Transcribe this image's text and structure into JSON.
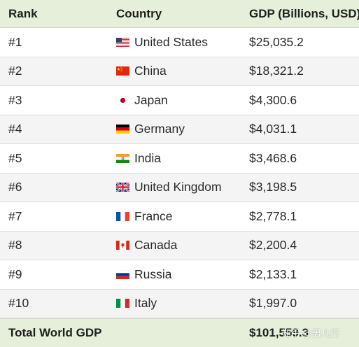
{
  "chart_data": {
    "type": "table",
    "columns": [
      "Rank",
      "Country",
      "GDP (Billions, USD)"
    ],
    "rows": [
      {
        "rank": "#1",
        "country": "United States",
        "gdp": "$25,035.2",
        "flag": "us-flag-icon"
      },
      {
        "rank": "#2",
        "country": "China",
        "gdp": "$18,321.2",
        "flag": "china-flag-icon"
      },
      {
        "rank": "#3",
        "country": "Japan",
        "gdp": "$4,300.6",
        "flag": "japan-flag-icon"
      },
      {
        "rank": "#4",
        "country": "Germany",
        "gdp": "$4,031.1",
        "flag": "germany-flag-icon"
      },
      {
        "rank": "#5",
        "country": "India",
        "gdp": "$3,468.6",
        "flag": "india-flag-icon"
      },
      {
        "rank": "#6",
        "country": "United Kingdom",
        "gdp": "$3,198.5",
        "flag": "uk-flag-icon"
      },
      {
        "rank": "#7",
        "country": "France",
        "gdp": "$2,778.1",
        "flag": "france-flag-icon"
      },
      {
        "rank": "#8",
        "country": "Canada",
        "gdp": "$2,200.4",
        "flag": "canada-flag-icon"
      },
      {
        "rank": "#9",
        "country": "Russia",
        "gdp": "$2,133.1",
        "flag": "russia-flag-icon"
      },
      {
        "rank": "#10",
        "country": "Italy",
        "gdp": "$1,997.0",
        "flag": "italy-flag-icon"
      }
    ],
    "total_label": "Total World GDP",
    "total_value": "$101,559.3"
  },
  "watermark": "知乎 @男儿行",
  "colors": {
    "header_bg": "#e6efd9",
    "stripe_bg": "#f4f4f4"
  }
}
